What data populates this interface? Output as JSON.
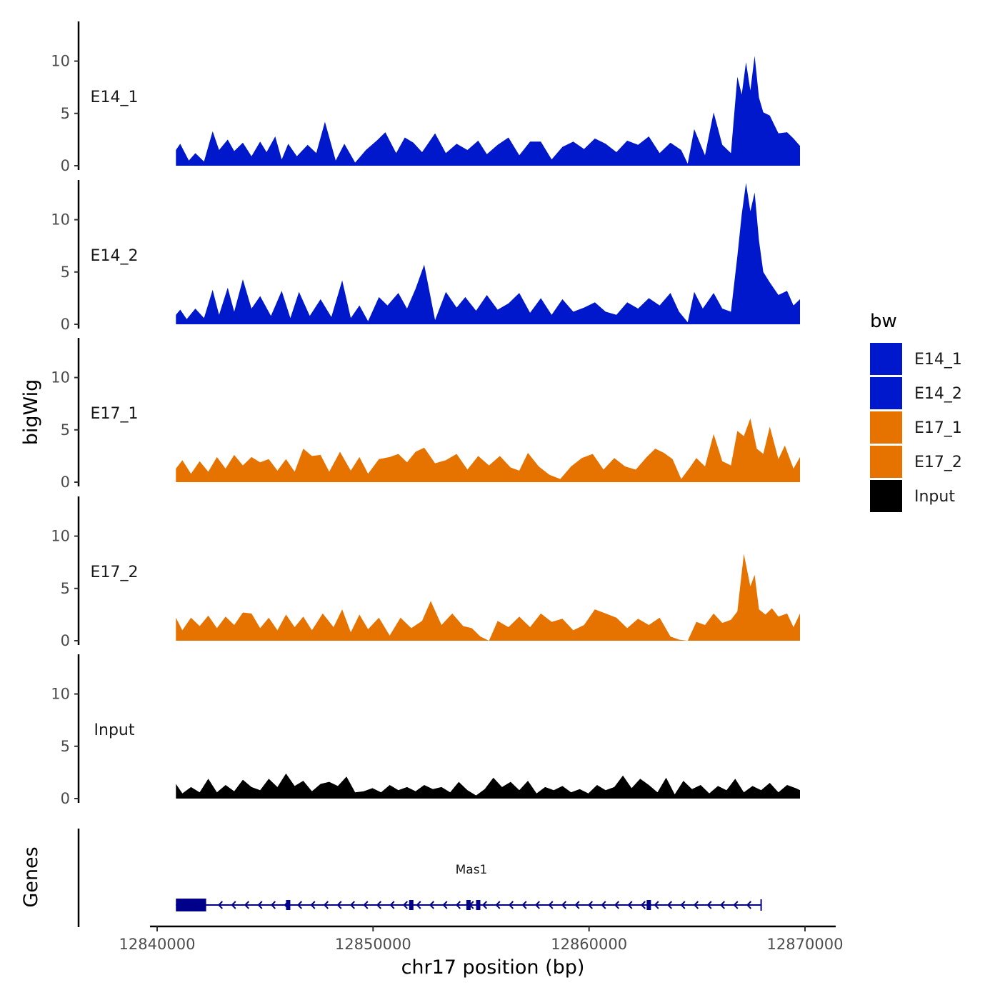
{
  "chart_data": {
    "type": "area",
    "title": "",
    "xlabel": "chr17 position (bp)",
    "ylabel": "bigWig",
    "xlim": [
      12840000,
      12870000
    ],
    "ylim": [
      0,
      14
    ],
    "x_ticks": [
      12840000,
      12850000,
      12860000,
      12870000
    ],
    "x_tick_labels": [
      "12840000",
      "12850000",
      "12860000",
      "12870000"
    ],
    "y_ticks": [
      0,
      5,
      10
    ],
    "y_tick_labels": [
      "0",
      "5",
      "10"
    ],
    "legend": {
      "title": "bw",
      "position": "right",
      "entries": [
        {
          "name": "E14_1",
          "color": "#0018CC"
        },
        {
          "name": "E14_2",
          "color": "#0018CC"
        },
        {
          "name": "E17_1",
          "color": "#E67300"
        },
        {
          "name": "E17_2",
          "color": "#E67300"
        },
        {
          "name": "Input",
          "color": "#000000"
        }
      ]
    },
    "series": [
      {
        "name": "E14_1",
        "color": "#0018CC",
        "x": [
          12841100,
          12841300,
          12841700,
          12842000,
          12842400,
          12842800,
          12843100,
          12843500,
          12843800,
          12844200,
          12844600,
          12845000,
          12845300,
          12845700,
          12846000,
          12846300,
          12846700,
          12847200,
          12847600,
          12848000,
          12848500,
          12848900,
          12849400,
          12849900,
          12850400,
          12850800,
          12851300,
          12851700,
          12852100,
          12852500,
          12853100,
          12853600,
          12854100,
          12854600,
          12855100,
          12855500,
          12856000,
          12856500,
          12857000,
          12857500,
          12858000,
          12858500,
          12859000,
          12859500,
          12860000,
          12860500,
          12861000,
          12861500,
          12862000,
          12862500,
          12863000,
          12863500,
          12864000,
          12864500,
          12864800,
          12865100,
          12865600,
          12866000,
          12866400,
          12866800,
          12867100,
          12867300,
          12867500,
          12867700,
          12867900,
          12868100,
          12868300,
          12868600,
          12869000,
          12869400,
          12869700,
          12870000
        ],
        "values": [
          1.5,
          2.1,
          0.5,
          1.2,
          0.4,
          3.3,
          1.5,
          2.5,
          1.4,
          2.2,
          0.9,
          2.3,
          1.3,
          2.8,
          0.6,
          2.1,
          0.9,
          2.0,
          1.2,
          4.2,
          0.5,
          2.1,
          0.3,
          1.5,
          2.4,
          3.2,
          1.2,
          2.7,
          2.2,
          1.3,
          3.1,
          1.2,
          2.1,
          1.5,
          2.4,
          1.1,
          2.0,
          2.7,
          1.0,
          2.3,
          2.3,
          0.6,
          1.8,
          2.3,
          1.6,
          2.6,
          2.1,
          1.3,
          2.4,
          2.0,
          2.8,
          1.2,
          2.2,
          1.5,
          0.2,
          3.5,
          1.0,
          5.1,
          2.0,
          1.2,
          8.5,
          6.8,
          9.9,
          7.2,
          10.5,
          6.5,
          5.1,
          4.8,
          3.1,
          3.2,
          2.6,
          1.9
        ]
      },
      {
        "name": "E14_2",
        "color": "#0018CC",
        "x": [
          12841100,
          12841300,
          12841600,
          12842000,
          12842400,
          12842800,
          12843100,
          12843500,
          12843800,
          12844200,
          12844600,
          12845000,
          12845500,
          12846000,
          12846400,
          12846800,
          12847300,
          12847800,
          12848300,
          12848800,
          12849200,
          12849600,
          12850000,
          12850500,
          12850900,
          12851400,
          12851800,
          12852200,
          12852600,
          12853100,
          12853600,
          12854100,
          12854500,
          12855000,
          12855500,
          12856000,
          12856500,
          12857000,
          12857500,
          12858000,
          12858500,
          12859000,
          12859500,
          12860000,
          12860500,
          12861000,
          12861500,
          12862000,
          12862500,
          12863000,
          12863500,
          12864000,
          12864400,
          12864800,
          12865100,
          12865500,
          12866000,
          12866400,
          12866800,
          12867100,
          12867300,
          12867500,
          12867700,
          12867900,
          12868100,
          12868300,
          12868600,
          12869000,
          12869400,
          12869700,
          12870000
        ],
        "values": [
          0.9,
          1.4,
          0.5,
          1.5,
          0.6,
          3.3,
          0.9,
          3.5,
          1.2,
          4.3,
          1.5,
          2.7,
          0.8,
          3.2,
          0.6,
          3.1,
          0.8,
          2.4,
          0.7,
          4.2,
          0.6,
          1.8,
          0.3,
          2.6,
          1.8,
          3.0,
          1.5,
          3.4,
          5.7,
          0.4,
          3.1,
          1.6,
          2.6,
          1.3,
          2.8,
          1.4,
          2.0,
          3.0,
          1.1,
          2.5,
          0.9,
          2.4,
          1.2,
          1.6,
          2.1,
          1.2,
          0.9,
          2.1,
          1.5,
          2.5,
          1.8,
          3.0,
          1.2,
          0.2,
          3.1,
          1.5,
          3.0,
          1.5,
          1.2,
          6.5,
          10.5,
          13.5,
          10.8,
          12.6,
          8.0,
          5.0,
          4.0,
          2.8,
          3.2,
          1.8,
          2.4
        ]
      },
      {
        "name": "E17_1",
        "color": "#E67300",
        "x": [
          12841100,
          12841400,
          12841800,
          12842200,
          12842600,
          12843000,
          12843400,
          12843800,
          12844200,
          12844600,
          12845000,
          12845400,
          12845800,
          12846200,
          12846600,
          12847000,
          12847400,
          12847800,
          12848200,
          12848700,
          12849200,
          12849600,
          12850000,
          12850500,
          12851000,
          12851400,
          12851800,
          12852200,
          12852600,
          12853100,
          12853600,
          12854100,
          12854600,
          12855100,
          12855600,
          12856100,
          12856600,
          12857000,
          12857400,
          12857900,
          12858400,
          12858900,
          12859400,
          12859900,
          12860400,
          12860900,
          12861400,
          12861900,
          12862400,
          12862900,
          12863300,
          12863700,
          12864100,
          12864500,
          12864900,
          12865200,
          12865600,
          12866000,
          12866400,
          12866800,
          12867100,
          12867400,
          12867700,
          12868000,
          12868300,
          12868600,
          12869000,
          12869300,
          12869700,
          12870000
        ],
        "values": [
          1.3,
          2.1,
          0.8,
          2.0,
          1.0,
          2.4,
          1.3,
          2.6,
          1.6,
          2.4,
          1.9,
          2.2,
          1.1,
          2.2,
          1.0,
          3.2,
          2.5,
          2.6,
          1.0,
          2.9,
          1.1,
          2.4,
          0.8,
          2.2,
          2.4,
          2.7,
          1.9,
          2.9,
          3.3,
          1.8,
          2.1,
          2.7,
          1.2,
          2.5,
          1.6,
          2.5,
          1.4,
          1.1,
          2.8,
          1.5,
          0.7,
          0.3,
          1.5,
          2.3,
          2.7,
          1.2,
          2.3,
          1.5,
          1.2,
          2.4,
          3.2,
          2.8,
          2.2,
          0.3,
          1.4,
          2.3,
          1.5,
          4.6,
          2.0,
          1.6,
          4.9,
          4.4,
          6.1,
          3.2,
          2.7,
          5.3,
          2.2,
          3.5,
          1.3,
          2.4
        ]
      },
      {
        "name": "E17_2",
        "color": "#E67300",
        "x": [
          12841100,
          12841400,
          12841800,
          12842200,
          12842600,
          12843000,
          12843400,
          12843800,
          12844200,
          12844600,
          12845000,
          12845400,
          12845800,
          12846200,
          12846600,
          12847000,
          12847400,
          12847900,
          12848400,
          12848800,
          12849200,
          12849600,
          12850000,
          12850500,
          12851000,
          12851500,
          12852000,
          12852500,
          12852900,
          12853400,
          12853900,
          12854400,
          12854800,
          12855200,
          12855600,
          12856000,
          12856500,
          12857000,
          12857500,
          12858000,
          12858500,
          12859000,
          12859500,
          12860000,
          12860500,
          12861000,
          12861500,
          12862000,
          12862500,
          12863000,
          12863500,
          12864000,
          12864400,
          12864800,
          12865200,
          12865600,
          12866000,
          12866400,
          12866800,
          12867100,
          12867400,
          12867700,
          12867900,
          12868100,
          12868400,
          12868700,
          12869000,
          12869400,
          12869700,
          12870000
        ],
        "values": [
          2.2,
          1.0,
          2.2,
          1.4,
          2.4,
          1.2,
          2.3,
          1.5,
          2.7,
          2.6,
          1.2,
          2.2,
          1.0,
          2.5,
          1.3,
          2.3,
          1.0,
          2.6,
          1.3,
          3.0,
          0.8,
          2.5,
          1.1,
          2.2,
          0.5,
          2.2,
          1.2,
          1.9,
          3.8,
          1.5,
          2.6,
          1.4,
          1.2,
          0.4,
          0.0,
          1.9,
          1.3,
          2.3,
          1.3,
          2.6,
          1.8,
          2.1,
          1.0,
          1.5,
          3.0,
          2.6,
          2.2,
          1.2,
          2.1,
          1.5,
          2.2,
          0.4,
          0.1,
          0.0,
          1.8,
          1.5,
          2.6,
          1.7,
          2.0,
          2.8,
          8.3,
          5.2,
          6.3,
          3.0,
          2.5,
          3.1,
          2.3,
          2.6,
          1.3,
          2.6
        ]
      },
      {
        "name": "Input",
        "color": "#000000",
        "x": [
          12841100,
          12841400,
          12841800,
          12842200,
          12842600,
          12843000,
          12843400,
          12843800,
          12844200,
          12844600,
          12845000,
          12845400,
          12845800,
          12846200,
          12846600,
          12847000,
          12847400,
          12847800,
          12848200,
          12848600,
          12849000,
          12849400,
          12849800,
          12850200,
          12850600,
          12851000,
          12851400,
          12851800,
          12852200,
          12852600,
          12853000,
          12853400,
          12853800,
          12854200,
          12854600,
          12855000,
          12855400,
          12855800,
          12856200,
          12856600,
          12857000,
          12857400,
          12857800,
          12858200,
          12858600,
          12859000,
          12859400,
          12859800,
          12860200,
          12860600,
          12861000,
          12861400,
          12861800,
          12862200,
          12862600,
          12863000,
          12863400,
          12863800,
          12864200,
          12864600,
          12865000,
          12865400,
          12865800,
          12866200,
          12866600,
          12867000,
          12867400,
          12867800,
          12868200,
          12868600,
          12869000,
          12869400,
          12869800,
          12870000
        ],
        "values": [
          1.4,
          0.5,
          1.1,
          0.6,
          1.9,
          0.6,
          1.3,
          0.7,
          1.8,
          1.1,
          0.8,
          1.9,
          1.1,
          2.4,
          1.2,
          1.7,
          0.7,
          1.4,
          1.6,
          1.2,
          2.1,
          0.6,
          0.7,
          1.0,
          0.6,
          1.3,
          0.8,
          1.1,
          0.7,
          1.3,
          0.9,
          1.1,
          0.6,
          1.6,
          0.8,
          0.3,
          0.9,
          2.0,
          1.1,
          1.6,
          0.8,
          1.7,
          0.5,
          1.1,
          0.8,
          1.2,
          0.6,
          0.9,
          0.5,
          1.3,
          0.8,
          1.1,
          2.2,
          1.0,
          1.9,
          1.3,
          0.6,
          2.0,
          0.4,
          1.7,
          0.9,
          1.3,
          0.5,
          1.2,
          0.8,
          1.9,
          0.6,
          1.2,
          0.8,
          1.5,
          0.6,
          1.3,
          1.0,
          0.8
        ]
      }
    ],
    "genes_track": {
      "label": "Genes",
      "gene_name": "Mas1",
      "strand": "-",
      "color": "#00008B",
      "start": 12841100,
      "end": 12868200,
      "exons": [
        [
          12841100,
          12842500
        ],
        [
          12846200,
          12846350
        ],
        [
          12851900,
          12852050
        ],
        [
          12854550,
          12854650
        ],
        [
          12855000,
          12855100
        ],
        [
          12862900,
          12863050
        ]
      ]
    }
  }
}
